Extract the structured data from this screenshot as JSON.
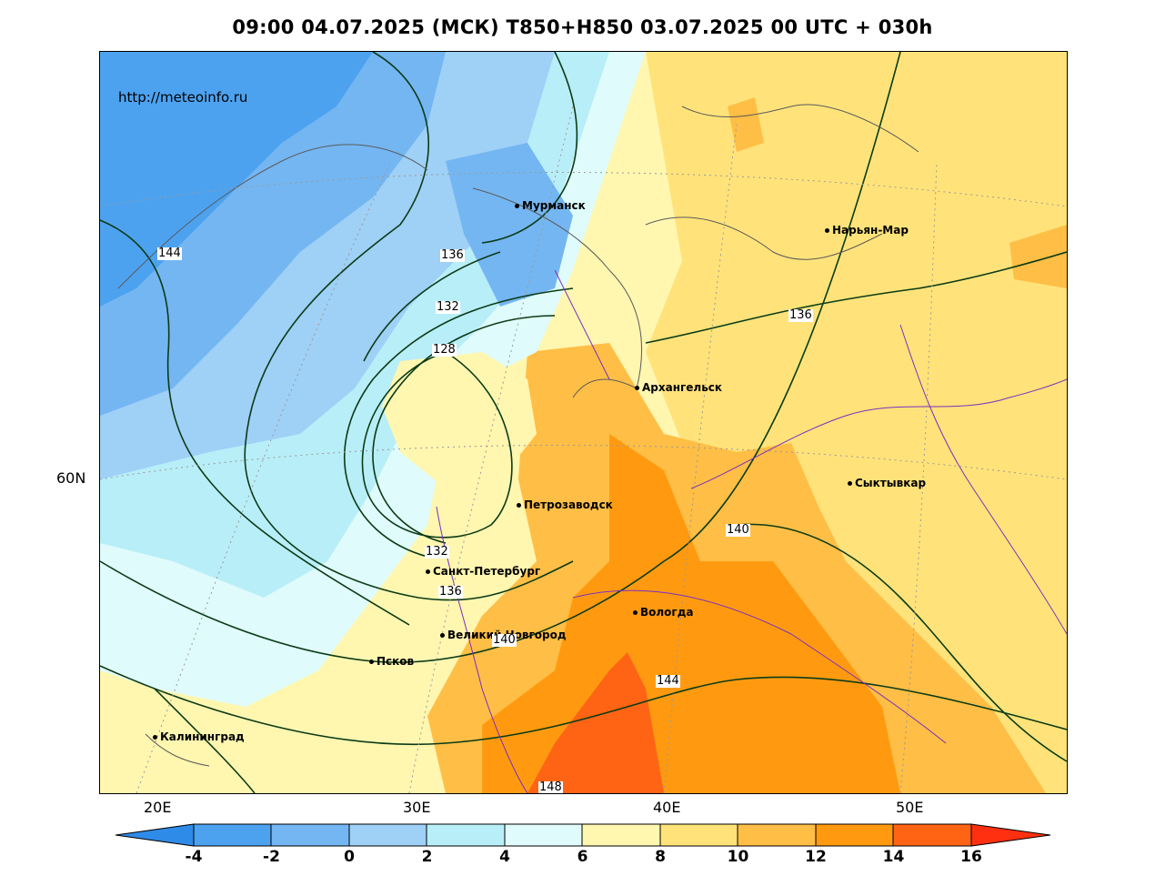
{
  "title": "09:00 04.07.2025 (МСК) T850+H850 03.07.2025 00 UTC + 030h",
  "watermark": "http://meteoinfo.ru",
  "axis": {
    "lat_labels": [
      "60N"
    ],
    "lon_labels": [
      "20E",
      "30E",
      "40E",
      "50E"
    ]
  },
  "cities": [
    {
      "name": "Мурманск"
    },
    {
      "name": "Нарьян-Мар"
    },
    {
      "name": "Архангельск"
    },
    {
      "name": "Сыктывкар"
    },
    {
      "name": "Петрозаводск"
    },
    {
      "name": "Санкт-Петербург"
    },
    {
      "name": "Вологда"
    },
    {
      "name": "Великий Новгород"
    },
    {
      "name": "Псков"
    },
    {
      "name": "Калининград"
    }
  ],
  "isohypse_labels": [
    "144",
    "136",
    "132",
    "128",
    "136",
    "140",
    "132",
    "136",
    "140",
    "144",
    "148"
  ],
  "colorbar": {
    "ticks": [
      "-4",
      "-2",
      "0",
      "2",
      "4",
      "6",
      "8",
      "10",
      "12",
      "14",
      "16"
    ],
    "colors": [
      "#2f8be8",
      "#4da2f0",
      "#74b6f2",
      "#9fd0f6",
      "#b8eef8",
      "#e0fbfb",
      "#fff6b0",
      "#ffe37a",
      "#ffbe45",
      "#ff9a10",
      "#ff6414",
      "#ff3010"
    ]
  }
}
